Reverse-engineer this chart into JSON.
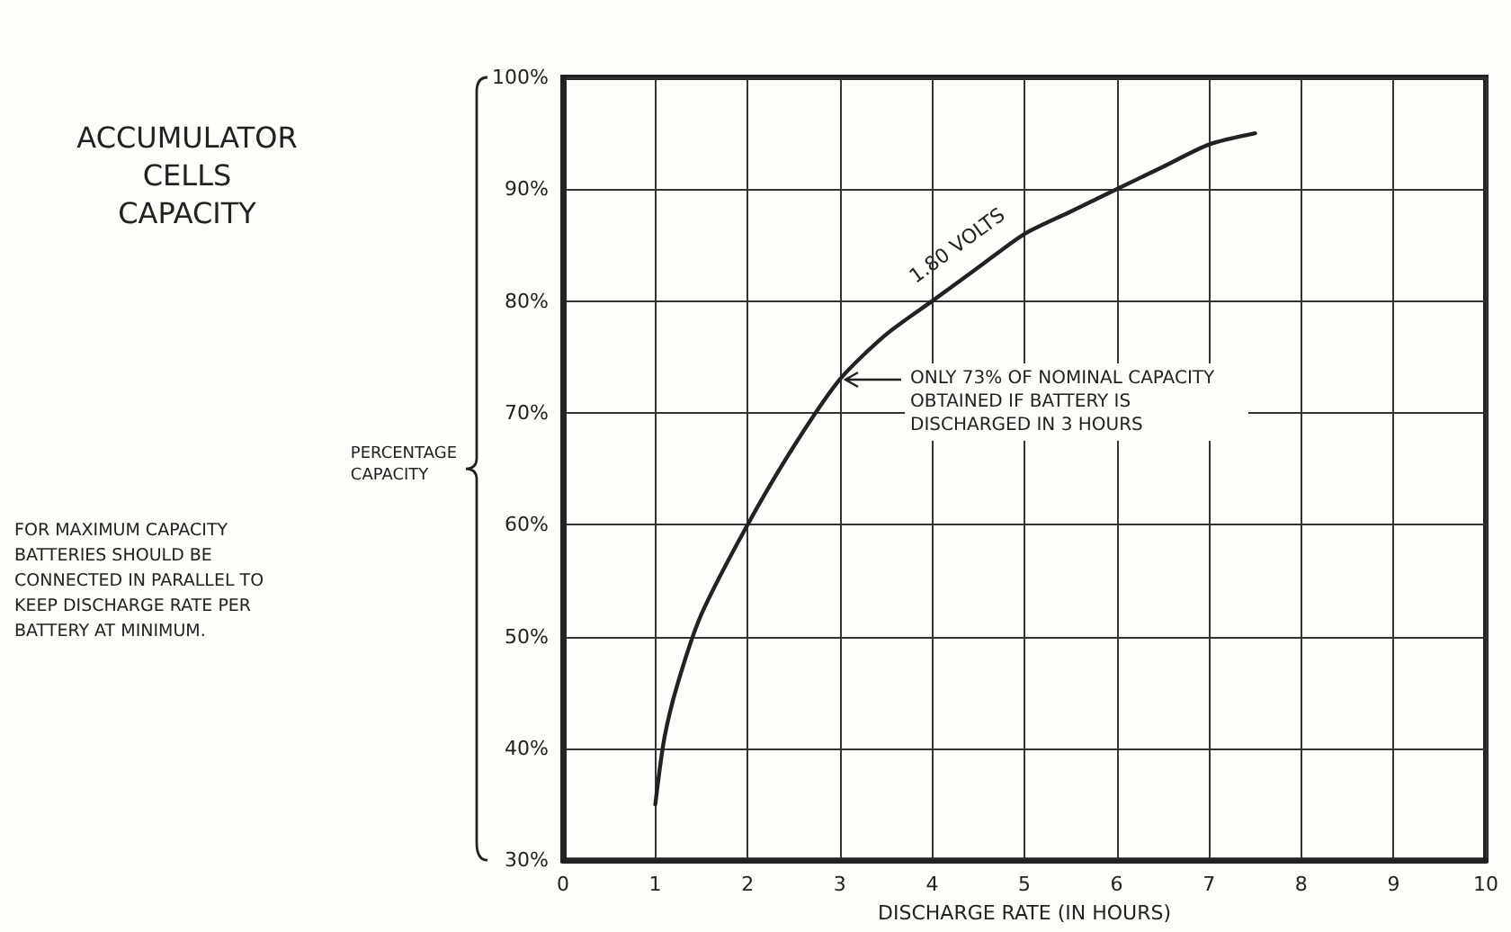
{
  "chart_data": {
    "type": "line",
    "title": "ACCUMULATOR CELLS CAPACITY",
    "xlabel": "DISCHARGE RATE (IN HOURS)",
    "ylabel": "PERCENTAGE CAPACITY",
    "x": [
      1,
      1.1,
      1.25,
      1.5,
      2,
      2.5,
      3,
      3.5,
      4,
      4.5,
      5,
      5.5,
      6,
      6.5,
      7,
      7.5
    ],
    "series": [
      {
        "name": "1.80 VOLTS",
        "color": "#222222",
        "values": [
          35,
          41,
          46,
          52,
          60,
          67,
          73,
          77,
          80,
          83,
          86,
          88,
          90,
          92,
          94,
          95
        ]
      }
    ],
    "xlim": [
      0,
      10
    ],
    "xticks": [
      0,
      1,
      2,
      3,
      4,
      5,
      6,
      7,
      8,
      9,
      10
    ],
    "ylim": [
      30,
      100
    ],
    "yticks": [
      {
        "value": 30,
        "label": "30%"
      },
      {
        "value": 40,
        "label": "40%"
      },
      {
        "value": 50,
        "label": "50%"
      },
      {
        "value": 60,
        "label": "60%"
      },
      {
        "value": 70,
        "label": "70%"
      },
      {
        "value": 80,
        "label": "80%"
      },
      {
        "value": 90,
        "label": "90%"
      },
      {
        "value": 100,
        "label": "100%"
      }
    ],
    "grid": true,
    "legend": false,
    "marker": "none",
    "line_style": "solid",
    "annotations": [
      "ONLY 73% OF NOMINAL CAPACITY OBTAINED IF BATTERY IS DISCHARGED IN 3 HOURS",
      "FOR MAXIMUM CAPACITY BATTERIES SHOULD BE CONNECTED IN PARALLEL TO KEEP DISCHARGE RATE PER BATTERY AT MINIMUM."
    ]
  }
}
